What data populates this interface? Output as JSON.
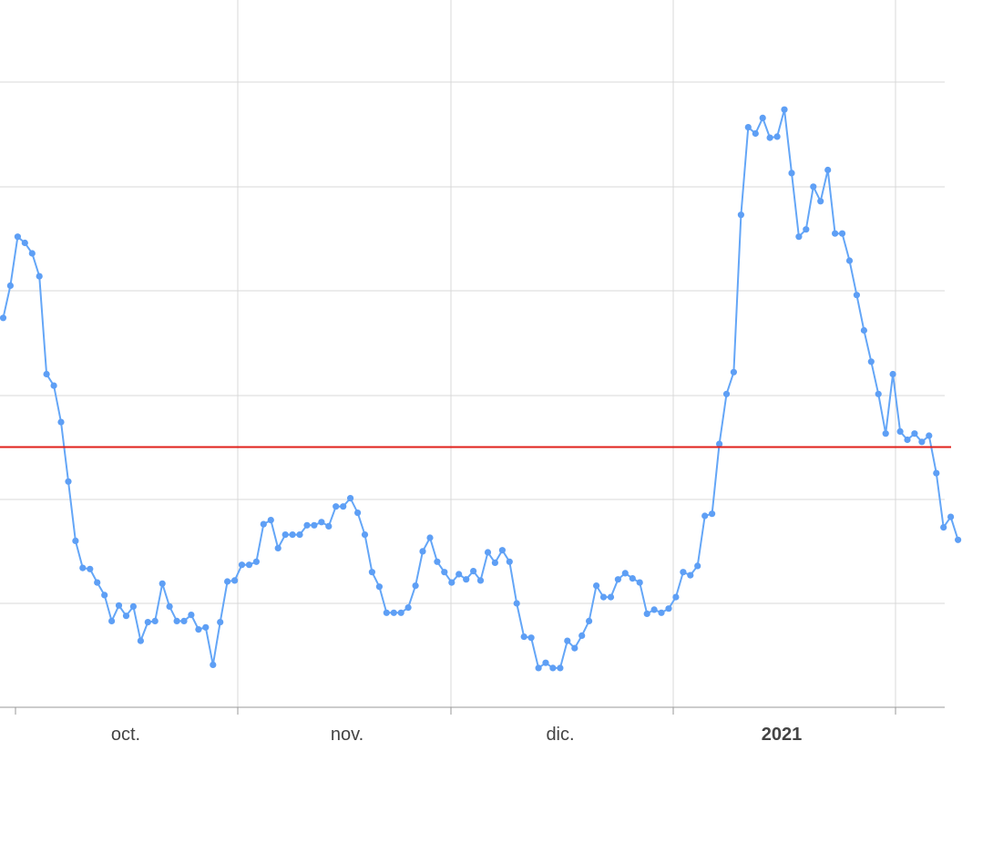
{
  "colors": {
    "series": "#64a6f7",
    "point": "#5e9ff5",
    "reference_line": "#e0201b",
    "grid": "#d8d8d8",
    "axis": "#9a9a9a",
    "text": "#444444"
  },
  "chart_data": {
    "type": "line",
    "title": "",
    "xlabel": "",
    "ylabel": "",
    "grid": true,
    "legend": "none",
    "x_tick_labels": [
      {
        "label": "oct.",
        "bold": false
      },
      {
        "label": "nov.",
        "bold": false
      },
      {
        "label": "dic.",
        "bold": false
      },
      {
        "label": "2021",
        "bold": true
      }
    ],
    "x_range_days": [
      -16,
      45
    ],
    "y_range": [
      -1,
      5.9
    ],
    "reference_line": 2.5,
    "series": [
      {
        "values": [
          3.74,
          4.05,
          4.52,
          4.46,
          4.36,
          4.14,
          3.2,
          3.09,
          2.74,
          2.17,
          1.6,
          1.34,
          1.33,
          1.2,
          1.08,
          0.83,
          0.98,
          0.88,
          0.97,
          0.64,
          0.82,
          0.83,
          1.19,
          0.97,
          0.83,
          0.83,
          0.89,
          0.75,
          0.77,
          0.41,
          0.82,
          1.21,
          1.22,
          1.37,
          1.37,
          1.4,
          1.76,
          1.8,
          1.53,
          1.66,
          1.66,
          1.66,
          1.75,
          1.75,
          1.78,
          1.74,
          1.93,
          1.93,
          2.01,
          1.87,
          1.66,
          1.3,
          1.16,
          0.91,
          0.91,
          0.91,
          0.96,
          1.17,
          1.5,
          1.63,
          1.4,
          1.3,
          1.2,
          1.28,
          1.23,
          1.31,
          1.22,
          1.49,
          1.39,
          1.51,
          1.4,
          1,
          0.68,
          0.67,
          0.38,
          0.43,
          0.38,
          0.38,
          0.64,
          0.57,
          0.69,
          0.83,
          1.17,
          1.06,
          1.06,
          1.23,
          1.29,
          1.24,
          1.2,
          0.9,
          0.94,
          0.91,
          0.95,
          1.06,
          1.3,
          1.27,
          1.36,
          1.84,
          1.86,
          2.53,
          3.01,
          3.22,
          4.73,
          5.57,
          5.51,
          5.66,
          5.47,
          5.48,
          5.74,
          5.13,
          4.52,
          4.59,
          5.0,
          4.86,
          5.16,
          4.55,
          4.55,
          4.29,
          3.96,
          3.62,
          3.32,
          3.01,
          2.63,
          3.2,
          2.65,
          2.57,
          2.63,
          2.55,
          2.61,
          2.25,
          1.73,
          1.83,
          1.61
        ]
      }
    ]
  }
}
